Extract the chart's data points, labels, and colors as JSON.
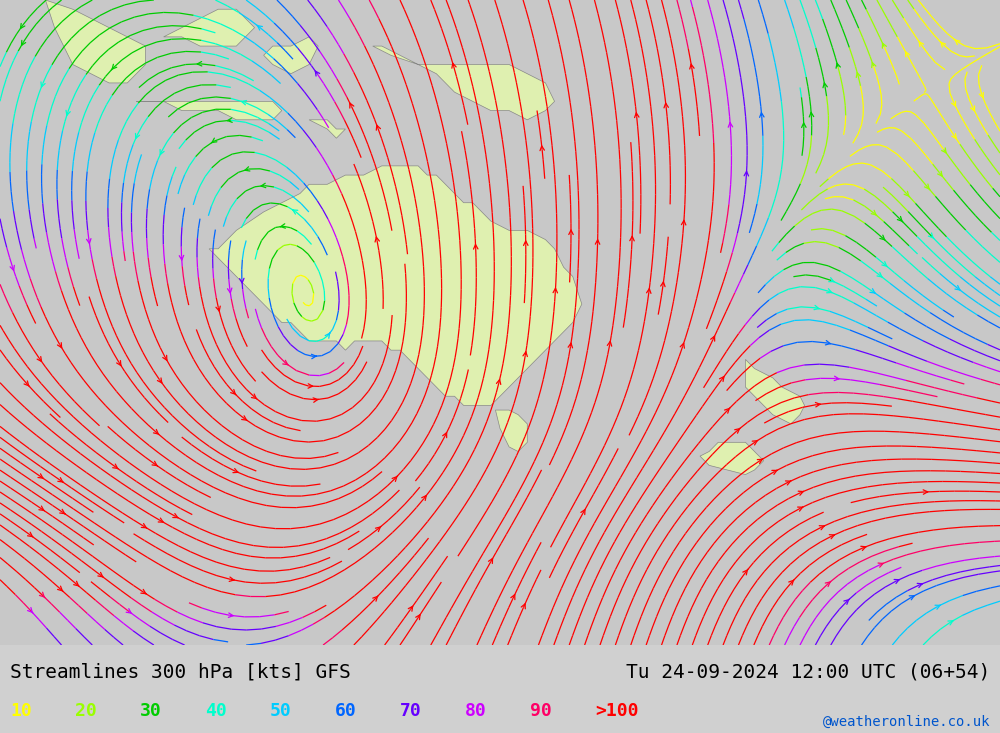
{
  "title_left": "Streamlines 300 hPa [kts] GFS",
  "title_right": "Tu 24-09-2024 12:00 UTC (06+54)",
  "credit": "@weatheronline.co.uk",
  "legend_labels": [
    "10",
    "20",
    "30",
    "40",
    "50",
    "60",
    "70",
    "80",
    "90",
    ">100"
  ],
  "legend_colors": [
    "#ffff00",
    "#99ff00",
    "#00cc00",
    "#00ffcc",
    "#00ccff",
    "#0066ff",
    "#6600ff",
    "#cc00ff",
    "#ff0066",
    "#ff0000"
  ],
  "background_color": "#c8c8c8",
  "land_color": "#dff0b0",
  "border_color": "#888888",
  "title_fontsize": 14,
  "credit_fontsize": 10,
  "legend_fontsize": 13,
  "fig_width": 10.0,
  "fig_height": 7.33,
  "lon_min": 90,
  "lon_max": 200,
  "lat_min": -65,
  "lat_max": 5
}
